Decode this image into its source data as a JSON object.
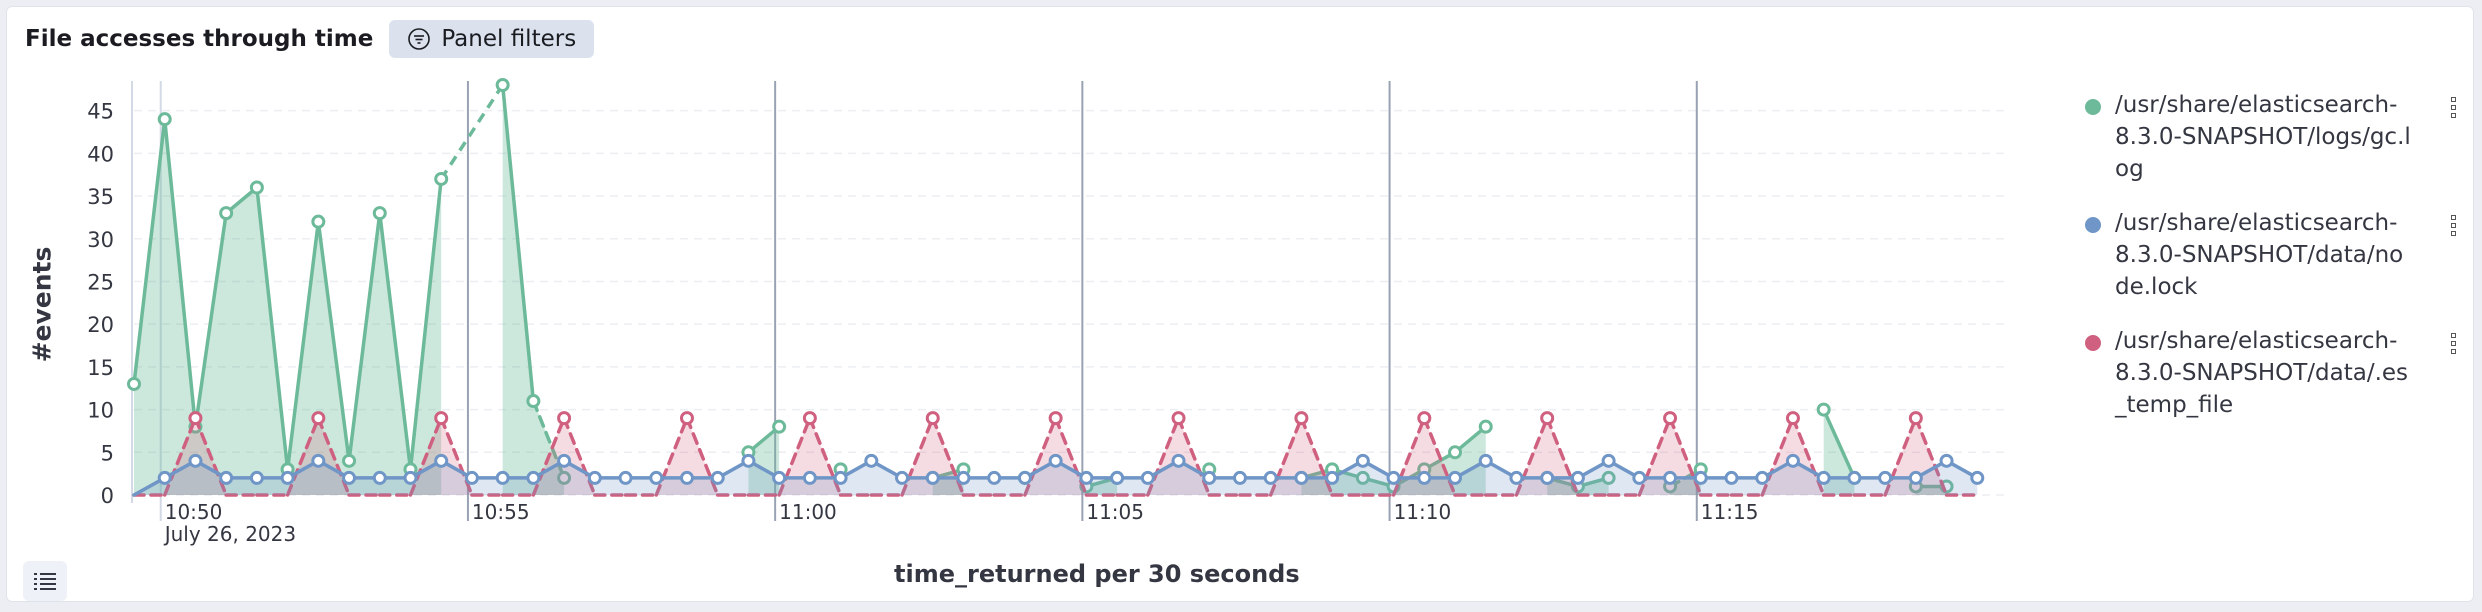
{
  "panel": {
    "title": "File accesses through time",
    "filters_label": "Panel filters"
  },
  "legend": {
    "items": [
      {
        "label": "/usr/share/elasticsearch-8.3.0-SNAPSHOT/logs/gc.log",
        "color": "#6dba9a"
      },
      {
        "label": "/usr/share/elasticsearch-8.3.0-SNAPSHOT/data/node.lock",
        "color": "#6f96c6"
      },
      {
        "label": "/usr/share/elasticsearch-8.3.0-SNAPSHOT/data/.es_temp_file",
        "color": "#d0607f"
      }
    ]
  },
  "chart_data": {
    "type": "area",
    "xlabel": "time_returned per 30 seconds",
    "ylabel": "#events",
    "ylim": [
      0,
      48
    ],
    "y_ticks": [
      0,
      5,
      10,
      15,
      20,
      25,
      30,
      35,
      40,
      45
    ],
    "x_start": "10:49:30",
    "x_interval_seconds": 30,
    "x_ticks": [
      {
        "label": "10:50",
        "sublabel": "July 26, 2023",
        "index": 1
      },
      {
        "label": "10:55",
        "index": 11
      },
      {
        "label": "11:00",
        "index": 21
      },
      {
        "label": "11:05",
        "index": 31
      },
      {
        "label": "11:10",
        "index": 41
      },
      {
        "label": "11:15",
        "index": 51
      }
    ],
    "series": [
      {
        "name": "/usr/share/elasticsearch-8.3.0-SNAPSHOT/logs/gc.log",
        "color": "#6dba9a",
        "values": [
          13,
          44,
          8,
          33,
          36,
          3,
          32,
          4,
          33,
          3,
          37,
          null,
          48,
          11,
          2,
          null,
          null,
          null,
          null,
          null,
          5,
          8,
          null,
          3,
          null,
          null,
          2,
          3,
          null,
          2,
          null,
          1,
          2,
          null,
          null,
          3,
          null,
          null,
          2,
          3,
          2,
          1,
          3,
          5,
          8,
          null,
          2,
          1,
          2,
          null,
          1,
          3,
          null,
          null,
          null,
          10,
          2,
          null,
          1,
          1,
          null,
          null
        ],
        "dashed_segments": [
          [
            10,
            12
          ],
          [
            13,
            15
          ],
          [
            50,
            52
          ]
        ]
      },
      {
        "name": "/usr/share/elasticsearch-8.3.0-SNAPSHOT/data/node.lock",
        "color": "#6f96c6",
        "values": [
          0,
          2,
          4,
          2,
          2,
          2,
          4,
          2,
          2,
          2,
          4,
          2,
          2,
          2,
          4,
          2,
          2,
          2,
          2,
          2,
          4,
          2,
          2,
          2,
          4,
          2,
          2,
          2,
          2,
          2,
          4,
          2,
          2,
          2,
          4,
          2,
          2,
          2,
          2,
          2,
          4,
          2,
          2,
          2,
          4,
          2,
          2,
          2,
          4,
          2,
          2,
          2,
          2,
          2,
          4,
          2,
          2,
          2,
          2,
          4,
          2
        ]
      },
      {
        "name": "/usr/share/elasticsearch-8.3.0-SNAPSHOT/data/.es_temp_file",
        "color": "#d0607f",
        "values": [
          0,
          0,
          9,
          0,
          0,
          0,
          9,
          0,
          0,
          0,
          9,
          0,
          0,
          0,
          9,
          0,
          0,
          0,
          9,
          0,
          0,
          0,
          9,
          0,
          0,
          0,
          9,
          0,
          0,
          0,
          9,
          0,
          0,
          0,
          9,
          0,
          0,
          0,
          9,
          0,
          0,
          0,
          9,
          0,
          0,
          0,
          9,
          0,
          0,
          0,
          9,
          0,
          0,
          0,
          9,
          0,
          0,
          0,
          9,
          0,
          0
        ]
      }
    ],
    "grid": true
  }
}
